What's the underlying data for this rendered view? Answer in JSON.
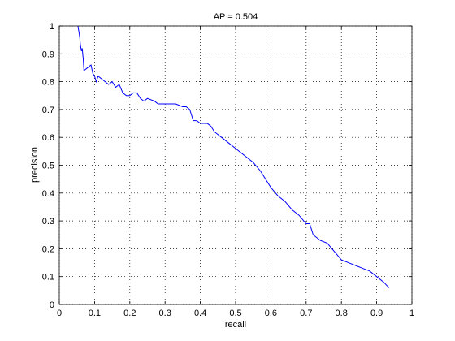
{
  "chart_data": {
    "type": "line",
    "title": "AP = 0.504",
    "x_label": "recall",
    "y_label": "precision",
    "x": [
      0.053,
      0.058,
      0.06,
      0.063,
      0.065,
      0.068,
      0.07,
      0.08,
      0.09,
      0.095,
      0.1,
      0.105,
      0.11,
      0.12,
      0.13,
      0.14,
      0.15,
      0.16,
      0.17,
      0.18,
      0.19,
      0.2,
      0.21,
      0.22,
      0.23,
      0.24,
      0.25,
      0.27,
      0.28,
      0.3,
      0.33,
      0.35,
      0.36,
      0.37,
      0.38,
      0.39,
      0.4,
      0.42,
      0.43,
      0.44,
      0.46,
      0.48,
      0.5,
      0.51,
      0.52,
      0.53,
      0.55,
      0.57,
      0.58,
      0.6,
      0.62,
      0.64,
      0.66,
      0.68,
      0.7,
      0.71,
      0.72,
      0.74,
      0.76,
      0.78,
      0.8,
      0.82,
      0.84,
      0.86,
      0.88,
      0.9,
      0.92,
      0.935
    ],
    "series": [
      {
        "color": "#0000ff",
        "values": [
          1.0,
          0.96,
          0.93,
          0.91,
          0.92,
          0.88,
          0.84,
          0.85,
          0.86,
          0.83,
          0.82,
          0.8,
          0.82,
          0.81,
          0.8,
          0.79,
          0.8,
          0.78,
          0.79,
          0.76,
          0.75,
          0.75,
          0.76,
          0.76,
          0.74,
          0.73,
          0.74,
          0.73,
          0.72,
          0.72,
          0.72,
          0.71,
          0.71,
          0.7,
          0.66,
          0.66,
          0.65,
          0.65,
          0.64,
          0.62,
          0.6,
          0.58,
          0.56,
          0.55,
          0.54,
          0.53,
          0.51,
          0.48,
          0.46,
          0.42,
          0.39,
          0.37,
          0.34,
          0.32,
          0.29,
          0.29,
          0.25,
          0.23,
          0.22,
          0.19,
          0.16,
          0.15,
          0.14,
          0.13,
          0.12,
          0.1,
          0.08,
          0.06
        ]
      }
    ],
    "xlim": [
      0,
      1
    ],
    "ylim": [
      0,
      1
    ],
    "xticks": [
      0,
      0.1,
      0.2,
      0.3,
      0.4,
      0.5,
      0.6,
      0.7,
      0.8,
      0.9,
      1
    ],
    "yticks": [
      0,
      0.1,
      0.2,
      0.3,
      0.4,
      0.5,
      0.6,
      0.7,
      0.8,
      0.9,
      1
    ],
    "grid": true
  }
}
